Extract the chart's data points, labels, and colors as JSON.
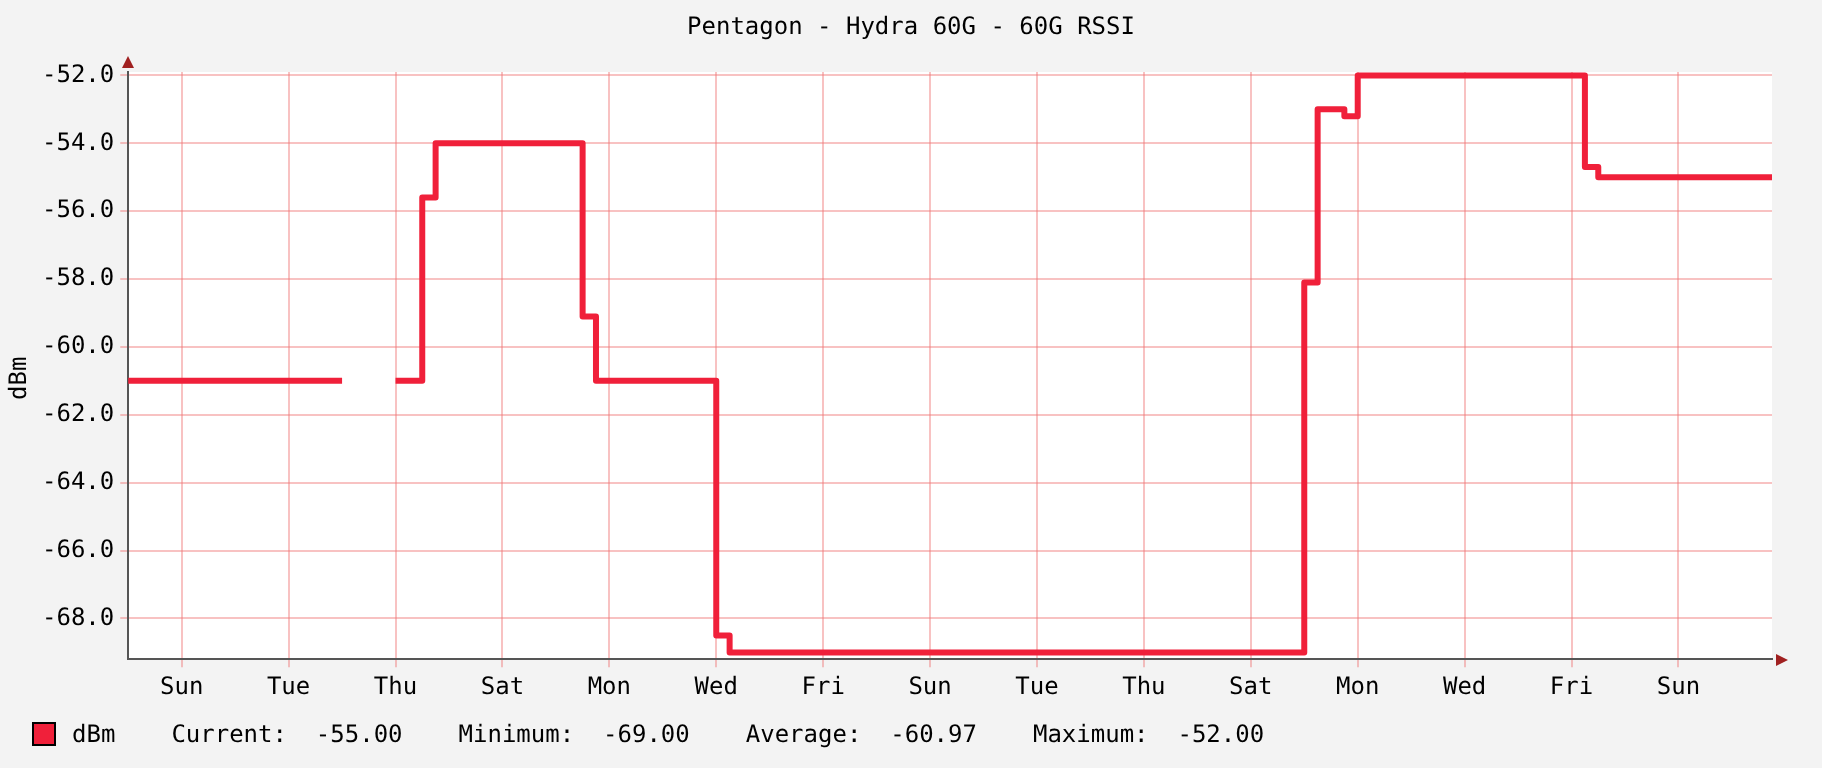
{
  "chart_data": {
    "type": "step",
    "title": "Pentagon - Hydra 60G - 60G RSSI",
    "ylabel": "dBm",
    "categories": [
      null,
      null,
      null,
      null,
      "Sun",
      null,
      null,
      null,
      null,
      null,
      null,
      null,
      "Tue",
      null,
      null,
      null,
      null,
      null,
      null,
      null,
      "Thu",
      null,
      null,
      null,
      null,
      null,
      null,
      null,
      "Sat",
      null,
      null,
      null,
      null,
      null,
      null,
      null,
      "Mon",
      null,
      null,
      null,
      null,
      null,
      null,
      null,
      "Wed",
      null,
      null,
      null,
      null,
      null,
      null,
      null,
      "Fri",
      null,
      null,
      null,
      null,
      null,
      null,
      null,
      "Sun",
      null,
      null,
      null,
      null,
      null,
      null,
      null,
      "Tue",
      null,
      null,
      null,
      null,
      null,
      null,
      null,
      "Thu",
      null,
      null,
      null,
      null,
      null,
      null,
      null,
      "Sat",
      null,
      null,
      null,
      null,
      null,
      null,
      null,
      "Mon",
      null,
      null,
      null,
      null,
      null,
      null,
      null,
      "Wed",
      null,
      null,
      null,
      null,
      null,
      null,
      null,
      "Fri",
      null,
      null,
      null,
      null,
      null,
      null,
      null,
      "Sun",
      null,
      null,
      null,
      null,
      null,
      null,
      null
    ],
    "series": [
      {
        "name": "dBm",
        "color": "#f0203a",
        "values": [
          -61,
          -61,
          -61,
          -61,
          -61,
          -61,
          -61,
          -61,
          -61,
          -61,
          -61,
          -61,
          -61,
          -61,
          -61,
          -61,
          -61,
          null,
          null,
          null,
          -61,
          -61,
          -55.6,
          -54,
          -54,
          -54,
          -54,
          -54,
          -54,
          -54,
          -54,
          -54,
          -54,
          -54,
          -59.1,
          -61,
          -61,
          -61,
          -61,
          -61,
          -61,
          -61,
          -61,
          -61,
          -68.5,
          -69,
          -69,
          -69,
          -69,
          -69,
          -69,
          -69,
          -69,
          -69,
          -69,
          -69,
          -69,
          -69,
          -69,
          -69,
          -69,
          -69,
          -69,
          -69,
          -69,
          -69,
          -69,
          -69,
          -69,
          -69,
          -69,
          -69,
          -69,
          -69,
          -69,
          -69,
          -69,
          -69,
          -69,
          -69,
          -69,
          -69,
          -69,
          -69,
          -69,
          -69,
          -69,
          -69,
          -58.1,
          -53,
          -53,
          -53.2,
          -52,
          -52,
          -52,
          -52,
          -52,
          -52,
          -52,
          -52,
          -52,
          -52,
          -52,
          -52,
          -52,
          -52,
          -52,
          -52,
          -52,
          -54.7,
          -55,
          -55,
          -55,
          -55,
          -55,
          -55,
          -55,
          -55,
          -55,
          -55,
          -55,
          -55,
          -55,
          -55
        ]
      }
    ],
    "ylim": [
      -69.2,
      -51.9
    ],
    "yticks": [
      {
        "value": -68,
        "label": "-68.0"
      },
      {
        "value": -66,
        "label": "-66.0"
      },
      {
        "value": -64,
        "label": "-64.0"
      },
      {
        "value": -62,
        "label": "-62.0"
      },
      {
        "value": -60,
        "label": "-60.0"
      },
      {
        "value": -58,
        "label": "-58.0"
      },
      {
        "value": -56,
        "label": "-56.0"
      },
      {
        "value": -54,
        "label": "-54.0"
      },
      {
        "value": -52,
        "label": "-52.0"
      }
    ],
    "grid": true,
    "legend": "bottom left",
    "line_style": "solid",
    "marker": "none",
    "annotations": [
      "Current:  -55.00",
      "Minimum:  -69.00",
      "Average:  -60.97",
      "Maximum:  -52.00"
    ]
  }
}
